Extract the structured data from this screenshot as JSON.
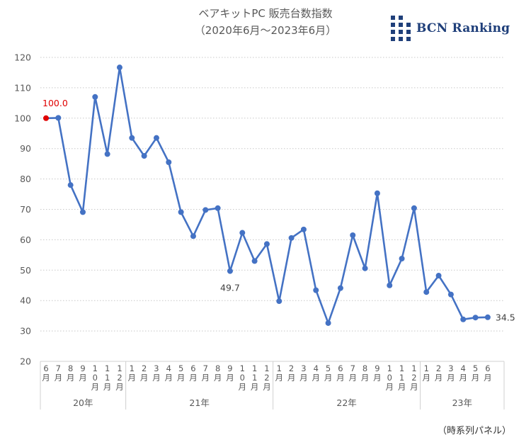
{
  "title": "ベアキットPC 販売台数指数",
  "subtitle": "（2020年6月〜2023年6月）",
  "logo": {
    "text": "BCN Ranking",
    "icon": "bcn-grid-logo",
    "color": "#1f3f7a"
  },
  "footnote": "（時系列パネル）",
  "colors": {
    "line": "#4472c4",
    "highlight": "#e00000",
    "grid": "#c8c8c8",
    "axis": "#d0d0d0",
    "text": "#595959"
  },
  "chart_data": {
    "type": "line",
    "ylim": [
      20,
      120
    ],
    "yticks": [
      20,
      30,
      40,
      50,
      60,
      70,
      80,
      90,
      100,
      110,
      120
    ],
    "grid": "horizontal-dotted",
    "categories": [
      "6月",
      "7月",
      "8月",
      "9月",
      "10月",
      "11月",
      "12月",
      "1月",
      "2月",
      "3月",
      "4月",
      "5月",
      "6月",
      "7月",
      "8月",
      "9月",
      "10月",
      "11月",
      "12月",
      "1月",
      "2月",
      "3月",
      "4月",
      "5月",
      "6月",
      "7月",
      "8月",
      "9月",
      "10月",
      "11月",
      "12月",
      "1月",
      "2月",
      "3月",
      "4月",
      "5月",
      "6月"
    ],
    "year_groups": [
      {
        "label": "20年",
        "count": 7
      },
      {
        "label": "21年",
        "count": 12
      },
      {
        "label": "22年",
        "count": 12
      },
      {
        "label": "23年",
        "count": 6
      }
    ],
    "series": [
      {
        "values": [
          100.0,
          100.1,
          78.0,
          69.1,
          107.0,
          88.2,
          116.7,
          93.5,
          87.6,
          93.5,
          85.5,
          69.1,
          61.2,
          69.8,
          70.4,
          49.7,
          62.3,
          53.0,
          58.6,
          39.8,
          60.6,
          63.4,
          43.4,
          32.6,
          44.1,
          61.5,
          50.6,
          75.3,
          45.0,
          53.8,
          70.4,
          42.8,
          48.2,
          42.0,
          33.8,
          34.4,
          34.5
        ]
      }
    ],
    "annotations": [
      {
        "index": 0,
        "label": "100.0",
        "color": "#e00000"
      },
      {
        "index": 15,
        "label": "49.7"
      },
      {
        "index": 36,
        "label": "34.5"
      }
    ]
  }
}
